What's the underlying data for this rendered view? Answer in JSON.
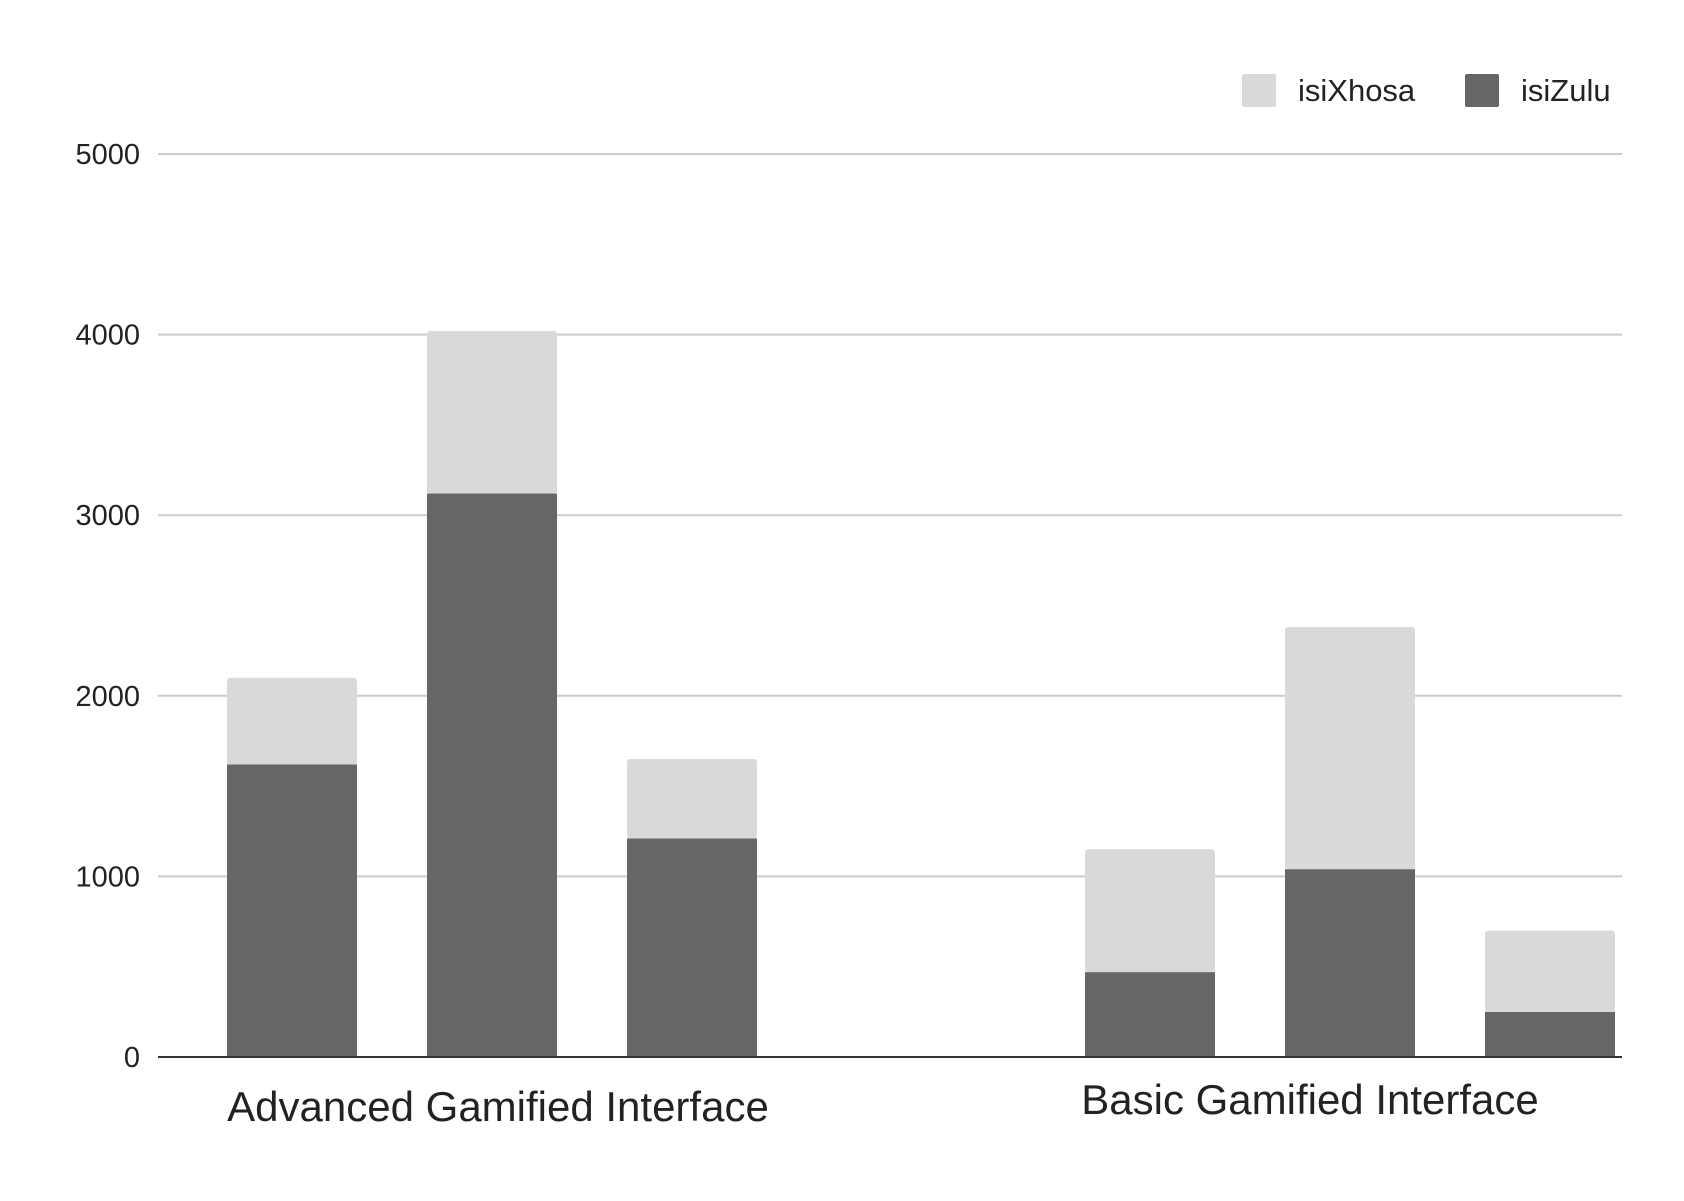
{
  "chart_data": {
    "type": "bar",
    "stacked": true,
    "title": "",
    "xlabel": "",
    "ylabel": "",
    "ylim": [
      0,
      5000
    ],
    "yticks": [
      0,
      1000,
      2000,
      3000,
      4000,
      5000
    ],
    "grid": true,
    "legend_position": "top-right",
    "groups": [
      {
        "label": "Advanced Gamified Interface",
        "bar_count": 3
      },
      {
        "label": "Basic Gamified Interface",
        "bar_count": 3
      }
    ],
    "series": [
      {
        "name": "isiZulu",
        "color": "#666666",
        "values": [
          1620,
          3120,
          1210,
          470,
          1040,
          250
        ]
      },
      {
        "name": "isiXhosa",
        "color": "#d9d9d9",
        "values": [
          480,
          900,
          440,
          680,
          1340,
          450
        ]
      }
    ],
    "legend_order": [
      "isiXhosa",
      "isiZulu"
    ]
  }
}
